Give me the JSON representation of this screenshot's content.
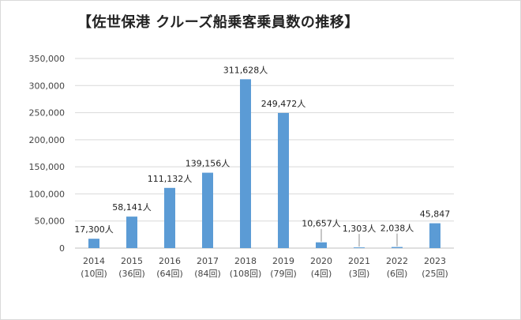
{
  "chart_data": {
    "type": "bar",
    "title": "【佐世保港  クルーズ船乗客乗員数の推移】",
    "categories": [
      "2014",
      "2015",
      "2016",
      "2017",
      "2018",
      "2019",
      "2020",
      "2021",
      "2022",
      "2023"
    ],
    "sub_categories": [
      "(10回)",
      "(36回)",
      "(64回)",
      "(84回)",
      "(108回)",
      "(79回)",
      "(4回)",
      "(3回)",
      "(6回)",
      "(25回)"
    ],
    "values": [
      17300,
      58141,
      111132,
      139156,
      311628,
      249472,
      10657,
      1303,
      2038,
      45847
    ],
    "data_labels": [
      "17,300人",
      "58,141人",
      "111,132人",
      "139,156人",
      "311,628人",
      "249,472人",
      "10,657人",
      "1,303人",
      "2,038人",
      "45,847"
    ],
    "yticks": [
      "0",
      "50,000",
      "100,000",
      "150,000",
      "200,000",
      "250,000",
      "300,000",
      "350,000"
    ],
    "ylim": [
      0,
      350000
    ],
    "xlabel": "",
    "ylabel": "",
    "grid": true,
    "bar_color": "#5b9bd5",
    "grid_color": "#d9d9d9"
  }
}
